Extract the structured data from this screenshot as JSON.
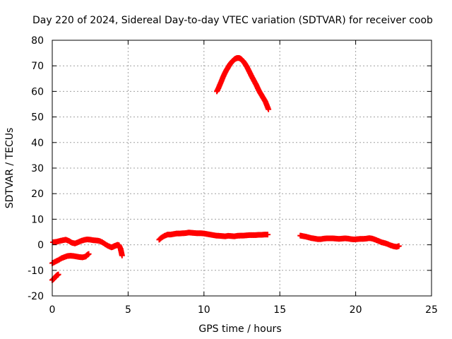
{
  "chart_data": {
    "type": "scatter",
    "title": "Day 220 of 2024, Sidereal Day-to-day VTEC variation (SDTVAR) for receiver coob",
    "xlabel": "GPS time / hours",
    "ylabel": "SDTVAR / TECUs",
    "xlim": [
      0,
      25
    ],
    "ylim": [
      -20,
      80
    ],
    "xticks": [
      0,
      5,
      10,
      15,
      20,
      25
    ],
    "yticks": [
      -20,
      -10,
      0,
      10,
      20,
      30,
      40,
      50,
      60,
      70,
      80
    ],
    "grid": true,
    "marker": "+",
    "color": "#ff0000",
    "series": [
      {
        "name": "segment-1",
        "points": [
          [
            0.0,
            -13.8
          ],
          [
            0.1,
            -13.3
          ],
          [
            0.2,
            -12.6
          ],
          [
            0.3,
            -12.0
          ],
          [
            0.4,
            -11.6
          ]
        ]
      },
      {
        "name": "segment-2",
        "points": [
          [
            0.0,
            -7.2
          ],
          [
            0.2,
            -6.6
          ],
          [
            0.4,
            -6.0
          ],
          [
            0.6,
            -5.3
          ],
          [
            0.8,
            -4.8
          ],
          [
            1.0,
            -4.4
          ],
          [
            1.2,
            -4.3
          ],
          [
            1.4,
            -4.4
          ],
          [
            1.6,
            -4.6
          ],
          [
            1.8,
            -4.8
          ],
          [
            2.0,
            -4.9
          ],
          [
            2.2,
            -4.6
          ],
          [
            2.3,
            -4.0
          ],
          [
            2.4,
            -3.6
          ]
        ]
      },
      {
        "name": "segment-3",
        "points": [
          [
            0.05,
            1.0
          ],
          [
            0.3,
            1.2
          ],
          [
            0.5,
            1.5
          ],
          [
            0.7,
            1.8
          ],
          [
            0.9,
            2.0
          ],
          [
            1.1,
            1.5
          ],
          [
            1.3,
            0.8
          ],
          [
            1.5,
            0.5
          ],
          [
            1.7,
            1.0
          ],
          [
            1.9,
            1.5
          ],
          [
            2.1,
            1.9
          ],
          [
            2.3,
            2.1
          ],
          [
            2.5,
            2.0
          ],
          [
            2.7,
            1.8
          ],
          [
            2.9,
            1.7
          ],
          [
            3.1,
            1.5
          ],
          [
            3.3,
            1.0
          ],
          [
            3.5,
            0.2
          ],
          [
            3.7,
            -0.5
          ],
          [
            3.9,
            -1.0
          ],
          [
            4.0,
            -0.8
          ],
          [
            4.1,
            -0.5
          ],
          [
            4.2,
            -0.3
          ],
          [
            4.3,
            0.0
          ],
          [
            4.4,
            -0.2
          ],
          [
            4.5,
            -1.5
          ],
          [
            4.55,
            -2.8
          ],
          [
            4.6,
            -4.2
          ]
        ]
      },
      {
        "name": "segment-4",
        "points": [
          [
            7.05,
            2.0
          ],
          [
            7.2,
            2.8
          ],
          [
            7.4,
            3.5
          ],
          [
            7.6,
            4.0
          ],
          [
            7.8,
            4.0
          ],
          [
            8.0,
            4.2
          ],
          [
            8.2,
            4.4
          ],
          [
            8.4,
            4.4
          ],
          [
            8.6,
            4.5
          ],
          [
            8.8,
            4.6
          ],
          [
            9.0,
            4.8
          ],
          [
            9.2,
            4.7
          ],
          [
            9.4,
            4.6
          ],
          [
            9.6,
            4.5
          ],
          [
            9.8,
            4.5
          ],
          [
            10.0,
            4.4
          ],
          [
            10.2,
            4.2
          ],
          [
            10.4,
            4.0
          ],
          [
            10.6,
            3.8
          ],
          [
            10.8,
            3.6
          ],
          [
            11.0,
            3.5
          ],
          [
            11.2,
            3.4
          ],
          [
            11.4,
            3.3
          ],
          [
            11.6,
            3.5
          ],
          [
            11.8,
            3.4
          ],
          [
            12.0,
            3.3
          ],
          [
            12.2,
            3.5
          ],
          [
            12.4,
            3.6
          ],
          [
            12.6,
            3.6
          ],
          [
            12.8,
            3.7
          ],
          [
            13.0,
            3.8
          ],
          [
            13.2,
            3.8
          ],
          [
            13.4,
            3.8
          ],
          [
            13.6,
            3.9
          ],
          [
            13.8,
            3.9
          ],
          [
            14.0,
            4.0
          ],
          [
            14.2,
            4.0
          ]
        ]
      },
      {
        "name": "segment-5",
        "points": [
          [
            10.85,
            60.0
          ],
          [
            10.95,
            61.2
          ],
          [
            11.05,
            62.6
          ],
          [
            11.15,
            64.0
          ],
          [
            11.25,
            65.5
          ],
          [
            11.35,
            66.8
          ],
          [
            11.45,
            68.0
          ],
          [
            11.55,
            69.0
          ],
          [
            11.65,
            70.0
          ],
          [
            11.75,
            70.9
          ],
          [
            11.85,
            71.6
          ],
          [
            11.95,
            72.2
          ],
          [
            12.05,
            72.7
          ],
          [
            12.15,
            73.0
          ],
          [
            12.25,
            73.1
          ],
          [
            12.35,
            73.0
          ],
          [
            12.45,
            72.6
          ],
          [
            12.55,
            72.0
          ],
          [
            12.65,
            71.3
          ],
          [
            12.75,
            70.4
          ],
          [
            12.85,
            69.4
          ],
          [
            12.95,
            68.2
          ],
          [
            13.05,
            67.0
          ],
          [
            13.15,
            65.8
          ],
          [
            13.25,
            64.7
          ],
          [
            13.35,
            63.6
          ],
          [
            13.45,
            62.5
          ],
          [
            13.55,
            61.2
          ],
          [
            13.65,
            60.0
          ],
          [
            13.75,
            59.0
          ],
          [
            13.85,
            58.0
          ],
          [
            13.95,
            57.0
          ],
          [
            14.05,
            56.0
          ],
          [
            14.15,
            54.5
          ],
          [
            14.25,
            53.0
          ]
        ]
      },
      {
        "name": "segment-6",
        "points": [
          [
            16.35,
            3.6
          ],
          [
            16.5,
            3.4
          ],
          [
            16.7,
            3.2
          ],
          [
            16.9,
            2.9
          ],
          [
            17.1,
            2.6
          ],
          [
            17.3,
            2.4
          ],
          [
            17.5,
            2.2
          ],
          [
            17.7,
            2.2
          ],
          [
            17.9,
            2.4
          ],
          [
            18.1,
            2.5
          ],
          [
            18.3,
            2.5
          ],
          [
            18.5,
            2.5
          ],
          [
            18.7,
            2.4
          ],
          [
            18.9,
            2.3
          ],
          [
            19.1,
            2.4
          ],
          [
            19.3,
            2.5
          ],
          [
            19.5,
            2.4
          ],
          [
            19.7,
            2.2
          ],
          [
            19.9,
            2.1
          ],
          [
            20.1,
            2.2
          ],
          [
            20.3,
            2.3
          ],
          [
            20.5,
            2.3
          ],
          [
            20.7,
            2.4
          ],
          [
            20.9,
            2.6
          ],
          [
            21.1,
            2.4
          ],
          [
            21.3,
            2.0
          ],
          [
            21.5,
            1.5
          ],
          [
            21.7,
            1.0
          ],
          [
            21.9,
            0.7
          ],
          [
            22.1,
            0.3
          ],
          [
            22.3,
            -0.2
          ],
          [
            22.5,
            -0.6
          ],
          [
            22.7,
            -0.8
          ],
          [
            22.85,
            -0.5
          ]
        ]
      }
    ]
  }
}
